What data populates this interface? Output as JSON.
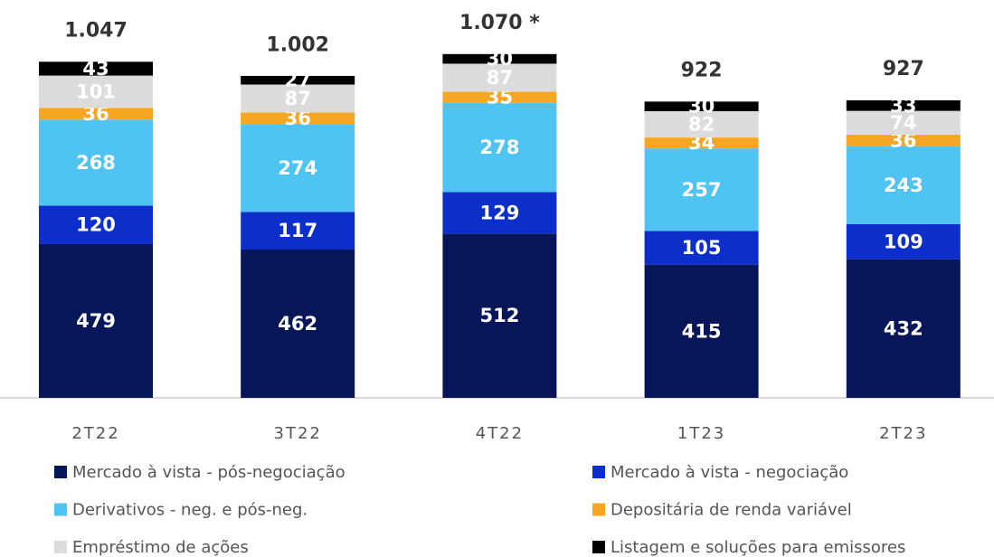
{
  "chart_data": {
    "type": "stacked_bar",
    "categories": [
      "2T22",
      "3T22",
      "4T22",
      "1T23",
      "2T23"
    ],
    "series": [
      {
        "name": "Mercado à vista - pós-negociação",
        "color": "#071659",
        "values": [
          479,
          462,
          512,
          415,
          432
        ]
      },
      {
        "name": "Mercado à vista - negociação",
        "color": "#0c2fcc",
        "values": [
          120,
          117,
          129,
          105,
          109
        ]
      },
      {
        "name": "Derivativos - neg. e pós-neg.",
        "color": "#4fc3f2",
        "values": [
          268,
          274,
          278,
          257,
          243
        ]
      },
      {
        "name": "Depositária de renda variável",
        "color": "#f5a623",
        "values": [
          36,
          36,
          35,
          34,
          36
        ]
      },
      {
        "name": "Empréstimo de ações",
        "color": "#dcdcdc",
        "values": [
          101,
          87,
          87,
          82,
          74
        ]
      },
      {
        "name": "Listagem e soluções para emissores",
        "color": "#000000",
        "values": [
          43,
          27,
          30,
          30,
          33
        ]
      }
    ],
    "totals": {
      "values": [
        1047,
        1002,
        1070,
        922,
        927
      ],
      "value_labels": [
        "1.047",
        "1.002",
        "1.070 *",
        "922",
        "927"
      ]
    }
  }
}
